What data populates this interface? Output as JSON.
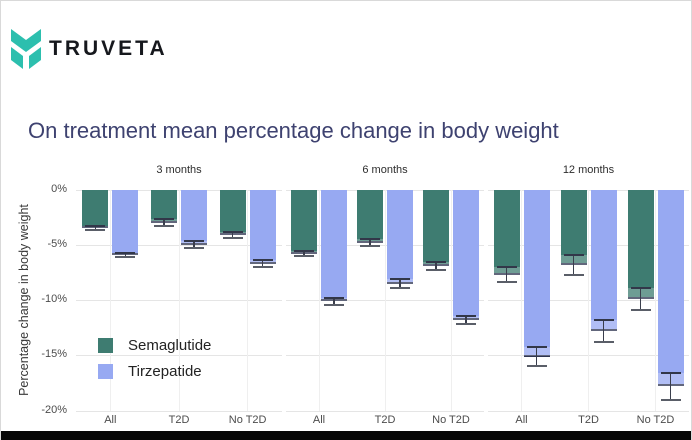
{
  "logo": {
    "text": "TRUVETA",
    "icon_color": "#2cbfae"
  },
  "title": "On treatment mean percentage change in body weight",
  "chart_data": {
    "type": "bar",
    "title": "On treatment mean percentage change in body weight",
    "xlabel": "",
    "ylabel": "Percentage change in body weight",
    "ylim": [
      0,
      -20
    ],
    "grid": true,
    "legend_position": "inside bottom-left of first facet",
    "yticks": [
      {
        "label": "0%",
        "value": 0
      },
      {
        "label": "-5%",
        "value": -5
      },
      {
        "label": "-10%",
        "value": -10
      },
      {
        "label": "-15%",
        "value": -15
      },
      {
        "label": "-20%",
        "value": -20
      }
    ],
    "categories": [
      "All",
      "T2D",
      "No T2D"
    ],
    "facets": [
      {
        "label": "3 months",
        "series": [
          {
            "name": "Semaglutide",
            "values": [
              -3.5,
              -3.0,
              -4.1
            ],
            "errors": [
              0.2,
              0.3,
              0.3
            ]
          },
          {
            "name": "Tirzepatide",
            "values": [
              -5.9,
              -5.0,
              -6.7
            ],
            "errors": [
              0.2,
              0.3,
              0.3
            ]
          }
        ]
      },
      {
        "label": "6 months",
        "series": [
          {
            "name": "Semaglutide",
            "values": [
              -5.8,
              -4.8,
              -6.9
            ],
            "errors": [
              0.25,
              0.3,
              0.35
            ]
          },
          {
            "name": "Tirzepatide",
            "values": [
              -10.1,
              -8.5,
              -11.8
            ],
            "errors": [
              0.3,
              0.4,
              0.4
            ]
          }
        ]
      },
      {
        "label": "12 months",
        "series": [
          {
            "name": "Semaglutide",
            "values": [
              -7.7,
              -6.8,
              -9.9
            ],
            "errors": [
              0.65,
              0.9,
              1.0
            ]
          },
          {
            "name": "Tirzepatide",
            "values": [
              -15.1,
              -12.8,
              -17.8
            ],
            "errors": [
              0.85,
              1.0,
              1.2
            ]
          }
        ]
      }
    ],
    "legend": [
      {
        "label": "Semaglutide",
        "color": "#3e7c71"
      },
      {
        "label": "Tirzepatide",
        "color": "#97a9f2"
      }
    ],
    "colors": {
      "Semaglutide": "#3e7c71",
      "Tirzepatide": "#97a9f2",
      "bar_edge": "#2e3450",
      "title": "#3e4270",
      "logo_teal": "#2cbfae"
    }
  }
}
